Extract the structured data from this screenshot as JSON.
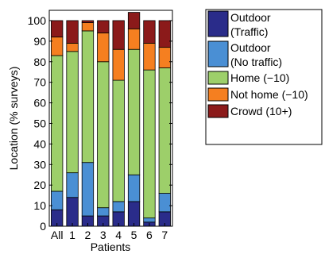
{
  "chart_data": {
    "type": "bar",
    "stacked": true,
    "categories": [
      "All",
      "1",
      "2",
      "3",
      "4",
      "5",
      "6",
      "7"
    ],
    "xlabel": "Patients",
    "ylabel": "Location (% surveys)",
    "ylim": [
      0,
      105
    ],
    "yticks": [
      "0",
      "10",
      "20",
      "30",
      "40",
      "50",
      "60",
      "70",
      "80",
      "90",
      "100"
    ],
    "grid": false,
    "legend_position": "right-outside",
    "series": [
      {
        "name": "Outdoor (Traffic)",
        "name_lines": [
          "Outdoor",
          "(Traffic)"
        ],
        "color": "#2a2c8a",
        "values": [
          8,
          14,
          5,
          5,
          7,
          12,
          2,
          7
        ]
      },
      {
        "name": "Outdoor (No traffic)",
        "name_lines": [
          "Outdoor",
          "(No traffic)"
        ],
        "color": "#4a8fd4",
        "values": [
          9,
          12,
          26,
          4,
          5,
          13,
          2,
          9
        ]
      },
      {
        "name": "Home (−10)",
        "name_lines": [
          "Home (−10)"
        ],
        "color": "#9dcf6a",
        "values": [
          66,
          59,
          64,
          71,
          59,
          61,
          72,
          61
        ]
      },
      {
        "name": "Not home (−10)",
        "name_lines": [
          "Not home (−10)"
        ],
        "color": "#f57f20",
        "values": [
          9,
          4,
          4,
          14,
          15,
          10,
          13,
          10
        ]
      },
      {
        "name": "Crowd (10+)",
        "name_lines": [
          "Crowd (10+)"
        ],
        "color": "#8b1a1a",
        "values": [
          8,
          11,
          1,
          6,
          14,
          8,
          11,
          13
        ]
      }
    ]
  }
}
